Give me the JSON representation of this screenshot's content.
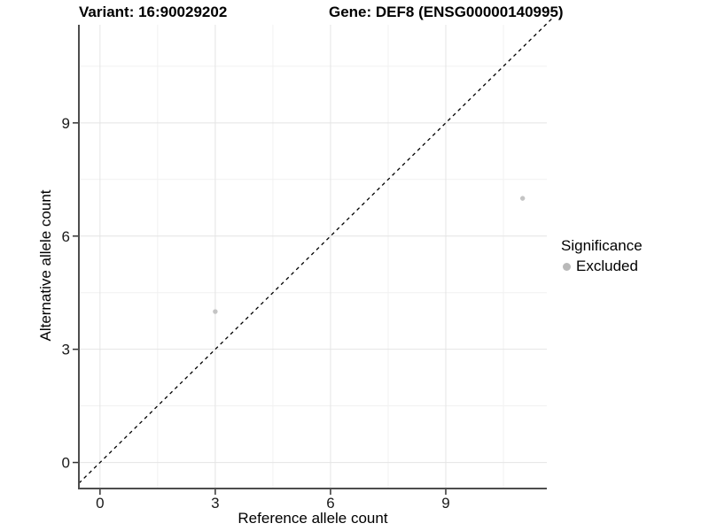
{
  "chart_data": {
    "type": "scatter",
    "title_left": "Variant: 16:90029202",
    "title_right": "Gene: DEF8 (ENSG00000140995)",
    "xlabel": "Reference allele count",
    "ylabel": "Alternative allele count",
    "xlim": [
      -0.55,
      11.63
    ],
    "ylim": [
      -0.69,
      11.6
    ],
    "x_ticks": [
      0,
      3,
      6,
      9
    ],
    "y_ticks": [
      0,
      3,
      6,
      9
    ],
    "x_minor_ticks": [
      1.5,
      4.5,
      7.5,
      10.5
    ],
    "y_minor_ticks": [
      1.5,
      4.5,
      7.5,
      10.5
    ],
    "points": [
      {
        "x": 3,
        "y": 4,
        "series": "Excluded"
      },
      {
        "x": 11,
        "y": 7,
        "series": "Excluded"
      }
    ],
    "identity_line": {
      "slope": 1,
      "intercept": 0,
      "style": "dashed",
      "draw_range": [
        -0.55,
        11.78
      ]
    },
    "colors": {
      "point": "#c4c4c4",
      "legend_dot": "#b9b9b9",
      "grid_major": "#e4e4e4",
      "grid_minor": "#f1f1f1",
      "axis_line": "#4d4d4d",
      "tick": "#333333",
      "identity_line": "#000000"
    },
    "legend": {
      "position": "right",
      "title": "Significance",
      "items": [
        {
          "label": "Excluded",
          "color": "#b9b9b9"
        }
      ]
    }
  }
}
